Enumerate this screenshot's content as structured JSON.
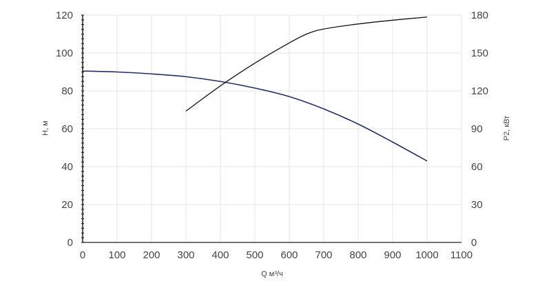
{
  "chart_data": {
    "type": "line",
    "xlabel": "Q м³/ч",
    "ylabel_left": "H, м",
    "ylabel_right": "P2, кВт",
    "xlim": [
      0,
      1100
    ],
    "ylim_left": [
      0,
      120
    ],
    "ylim_right": [
      0,
      180
    ],
    "x_ticks": [
      0,
      100,
      200,
      300,
      400,
      500,
      600,
      700,
      800,
      900,
      1000,
      1100
    ],
    "y_left_ticks": [
      0,
      20,
      40,
      60,
      80,
      100,
      120
    ],
    "y_right_ticks": [
      0,
      30,
      60,
      90,
      120,
      150,
      180
    ],
    "grid": true,
    "series": [
      {
        "axis": "left",
        "color": "#1f2f6b",
        "x": [
          0,
          100,
          200,
          300,
          400,
          500,
          600,
          700,
          800,
          900,
          1000
        ],
        "values": [
          90.5,
          90,
          89,
          87.5,
          85,
          81.5,
          77,
          70.5,
          62.5,
          53,
          43
        ]
      },
      {
        "axis": "right",
        "color": "#111111",
        "x": [
          300,
          400,
          500,
          600,
          650,
          700,
          800,
          900,
          1000
        ],
        "values": [
          104,
          124,
          142,
          158,
          165,
          169,
          173,
          176,
          178.5
        ]
      }
    ]
  }
}
